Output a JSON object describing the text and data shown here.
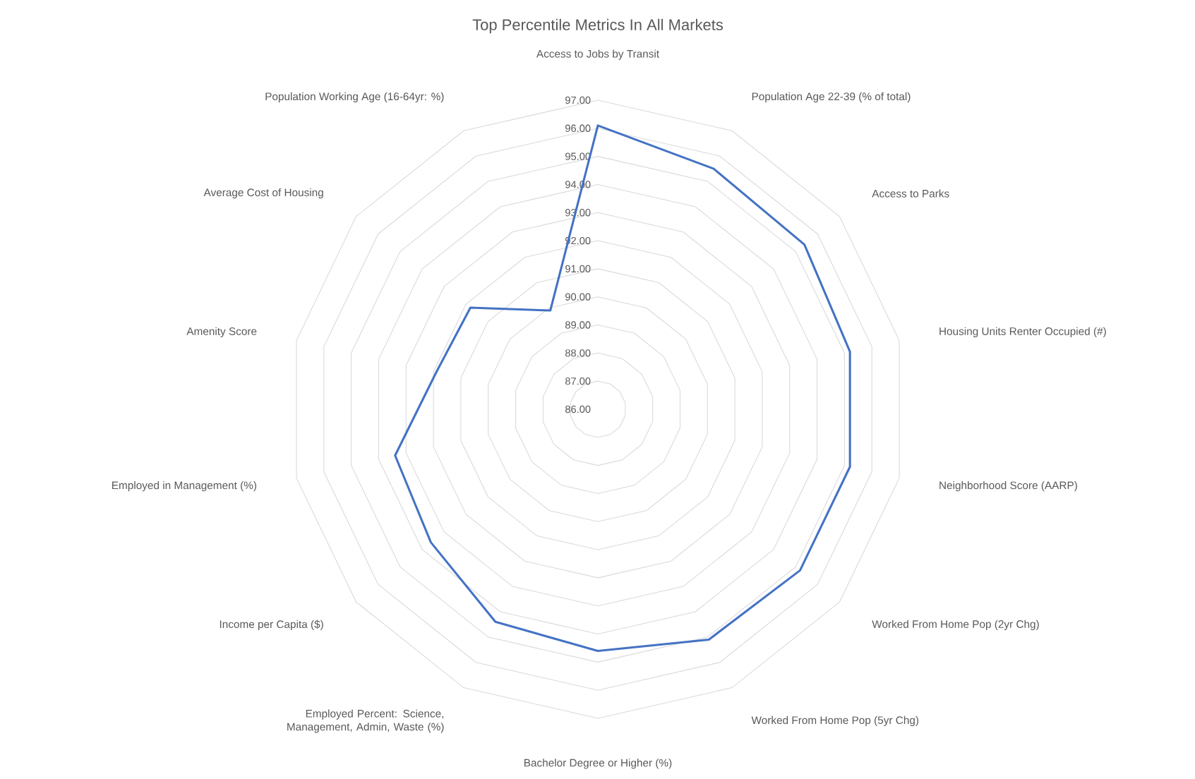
{
  "chart_data": {
    "type": "radar",
    "title": "Top Percentile Metrics In All Markets",
    "categories": [
      "Access to Jobs by Transit",
      "Population Age 22-39 (% of total)",
      "Access to Parks",
      "Housing Units Renter Occupied (#)",
      "Neighborhood Score (AARP)",
      "Worked From Home Pop (2yr Chg)",
      "Worked From Home Pop (5yr Chg)",
      "Bachelor Degree or Higher (%)",
      "Employed Percent: Science, Management, Admin, Waste (%)",
      "Income per Capita ($)",
      "Employed in Management (%)",
      "Amenity Score",
      "Average Cost of Housing",
      "Population Working Age (16-64yr: %)"
    ],
    "series": [
      {
        "color": "#4472c4",
        "values": [
          96.1,
          95.5,
          95.4,
          95.2,
          95.2,
          95.2,
          95.1,
          94.6,
          94.4,
          93.6,
          93.4,
          91.9,
          91.8,
          89.9
        ]
      }
    ],
    "ylim": [
      86,
      97
    ],
    "yticks": [
      {
        "value": 86,
        "label": "86.00"
      },
      {
        "value": 87,
        "label": "87.00"
      },
      {
        "value": 88,
        "label": "88.00"
      },
      {
        "value": 89,
        "label": "89.00"
      },
      {
        "value": 90,
        "label": "90.00"
      },
      {
        "value": 91,
        "label": "91.00"
      },
      {
        "value": 92,
        "label": "92.00"
      },
      {
        "value": 93,
        "label": "93.00"
      },
      {
        "value": 94,
        "label": "94.00"
      },
      {
        "value": 95,
        "label": "95.00"
      },
      {
        "value": 96,
        "label": "96.00"
      },
      {
        "value": 97,
        "label": "97.00"
      }
    ],
    "grid": true
  }
}
